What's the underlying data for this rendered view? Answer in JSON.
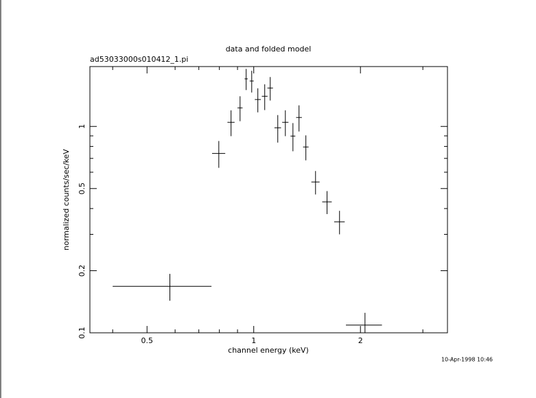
{
  "chart_data": {
    "type": "errorbar",
    "title": "data and folded model",
    "subtitle": "ad53033000s010412_1.pi",
    "x_label": "channel energy (keV)",
    "y_label": "normalized counts/sec/keV",
    "timestamp": "10-Apr-1998 10:46",
    "x_log": true,
    "y_log": true,
    "color": "#000000",
    "xlim": [
      0.345,
      3.52
    ],
    "ylim": [
      0.1,
      1.95
    ],
    "xticks": [
      0.5,
      1,
      2
    ],
    "yticks": [
      0.1,
      0.2,
      0.5,
      1
    ],
    "xminorticks": [
      0.4,
      0.6,
      0.7,
      0.8,
      0.9,
      3
    ],
    "yminorticks": [
      0.3,
      0.4,
      0.6,
      0.7,
      0.8,
      0.9
    ],
    "x": [
      0.58,
      0.797,
      0.863,
      0.915,
      0.952,
      0.987,
      1.027,
      1.074,
      1.113,
      1.169,
      1.228,
      1.29,
      1.342,
      1.403,
      1.494,
      1.61,
      1.746,
      2.06
    ],
    "x_err": [
      0.18,
      0.034,
      0.02,
      0.015,
      0.01,
      0.013,
      0.02,
      0.02,
      0.02,
      0.025,
      0.025,
      0.02,
      0.025,
      0.025,
      0.04,
      0.05,
      0.06,
      0.24
    ],
    "values": [
      0.168,
      0.74,
      1.047,
      1.23,
      1.7,
      1.66,
      1.35,
      1.4,
      1.535,
      0.985,
      1.047,
      0.898,
      1.105,
      0.795,
      0.538,
      0.431,
      0.345,
      0.109
    ],
    "y_err": [
      0.025,
      0.11,
      0.15,
      0.17,
      0.2,
      0.2,
      0.18,
      0.2,
      0.2,
      0.15,
      0.15,
      0.14,
      0.16,
      0.11,
      0.07,
      0.055,
      0.045,
      0.016
    ]
  }
}
